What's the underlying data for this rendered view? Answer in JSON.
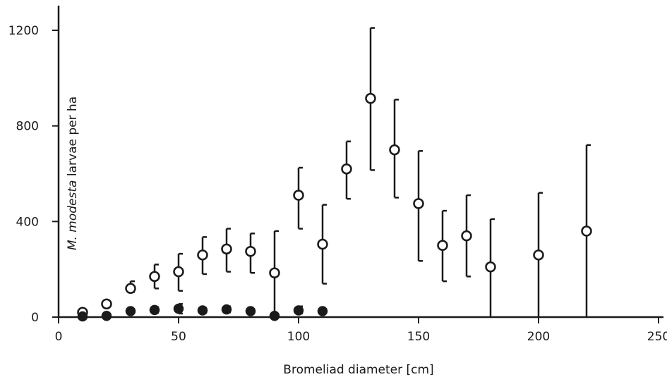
{
  "chart_data": {
    "type": "scatter",
    "title": "",
    "xlabel": "Bromeliad diameter [cm]",
    "ylabel_italic": "M. modesta",
    "ylabel_rest": " larvae per ha",
    "xlim": [
      0,
      250
    ],
    "ylim": [
      0,
      1200
    ],
    "xticks": [
      0,
      50,
      100,
      150,
      200,
      250
    ],
    "yticks": [
      0,
      400,
      800,
      1200
    ],
    "grid": false,
    "legend": "none",
    "series": [
      {
        "style": "open",
        "points": [
          {
            "x": 10,
            "y": 20,
            "lo": 15,
            "hi": 25
          },
          {
            "x": 20,
            "y": 55,
            "lo": 50,
            "hi": 65
          },
          {
            "x": 30,
            "y": 120,
            "lo": 105,
            "hi": 150
          },
          {
            "x": 40,
            "y": 170,
            "lo": 120,
            "hi": 220
          },
          {
            "x": 50,
            "y": 190,
            "lo": 110,
            "hi": 265
          },
          {
            "x": 60,
            "y": 260,
            "lo": 180,
            "hi": 335
          },
          {
            "x": 70,
            "y": 285,
            "lo": 190,
            "hi": 370
          },
          {
            "x": 80,
            "y": 275,
            "lo": 185,
            "hi": 350
          },
          {
            "x": 90,
            "y": 185,
            "lo": 0,
            "hi": 360
          },
          {
            "x": 100,
            "y": 510,
            "lo": 370,
            "hi": 625
          },
          {
            "x": 110,
            "y": 305,
            "lo": 140,
            "hi": 470
          },
          {
            "x": 120,
            "y": 620,
            "lo": 495,
            "hi": 735
          },
          {
            "x": 130,
            "y": 915,
            "lo": 615,
            "hi": 1210
          },
          {
            "x": 140,
            "y": 700,
            "lo": 500,
            "hi": 910
          },
          {
            "x": 150,
            "y": 475,
            "lo": 235,
            "hi": 695
          },
          {
            "x": 160,
            "y": 300,
            "lo": 150,
            "hi": 445
          },
          {
            "x": 170,
            "y": 340,
            "lo": 170,
            "hi": 510
          },
          {
            "x": 180,
            "y": 210,
            "lo": 0,
            "hi": 410
          },
          {
            "x": 200,
            "y": 260,
            "lo": 0,
            "hi": 520
          },
          {
            "x": 220,
            "y": 360,
            "lo": 0,
            "hi": 720
          }
        ]
      },
      {
        "style": "filled",
        "points": [
          {
            "x": 10,
            "y": 3,
            "lo": 0,
            "hi": 8
          },
          {
            "x": 20,
            "y": 5,
            "lo": 0,
            "hi": 10
          },
          {
            "x": 30,
            "y": 25,
            "lo": 18,
            "hi": 32
          },
          {
            "x": 40,
            "y": 30,
            "lo": 18,
            "hi": 42
          },
          {
            "x": 50,
            "y": 35,
            "lo": 15,
            "hi": 55
          },
          {
            "x": 60,
            "y": 28,
            "lo": 18,
            "hi": 38
          },
          {
            "x": 70,
            "y": 32,
            "lo": 20,
            "hi": 45
          },
          {
            "x": 80,
            "y": 25,
            "lo": 15,
            "hi": 32
          },
          {
            "x": 90,
            "y": 5,
            "lo": 0,
            "hi": 10
          },
          {
            "x": 100,
            "y": 28,
            "lo": 15,
            "hi": 45
          },
          {
            "x": 110,
            "y": 25,
            "lo": 18,
            "hi": 32
          }
        ]
      }
    ]
  }
}
